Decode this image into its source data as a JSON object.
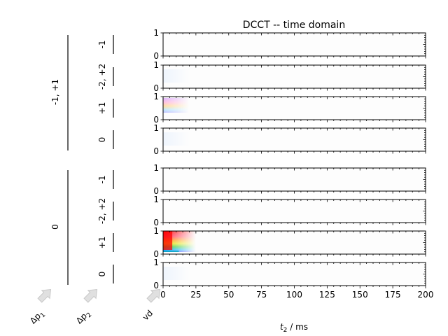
{
  "chart_data": {
    "type": "heatmap",
    "title": "DCCT -- time domain",
    "xlabel": "$t_2$ / ms",
    "xlabel_text": "t",
    "xlabel_sub": "2",
    "xlabel_unit": " / ms",
    "xlim": [
      0,
      200
    ],
    "xticks": [
      "0",
      "25",
      "50",
      "75",
      "100",
      "125",
      "150",
      "175",
      "200"
    ],
    "ylim": [
      0,
      1
    ],
    "yticks": [
      "0",
      "1"
    ],
    "outer_group_label": "Δp",
    "outer_group_sub": "1",
    "inner_group_label": "Δp",
    "inner_group_sub": "2",
    "row_axis_label": "vd",
    "groups": [
      {
        "label": "-1, +1",
        "rows": [
          {
            "label": "-1",
            "signal": "none"
          },
          {
            "label": "-2, +2",
            "signal": "weak"
          },
          {
            "label": "+1",
            "signal": "decay"
          },
          {
            "label": "0",
            "signal": "weak"
          }
        ]
      },
      {
        "label": "0",
        "rows": [
          {
            "label": "-1",
            "signal": "none"
          },
          {
            "label": "-2, +2",
            "signal": "none"
          },
          {
            "label": "+1",
            "signal": "strong"
          },
          {
            "label": "0",
            "signal": "weak"
          }
        ]
      }
    ],
    "decay_extent_ms": 25
  }
}
